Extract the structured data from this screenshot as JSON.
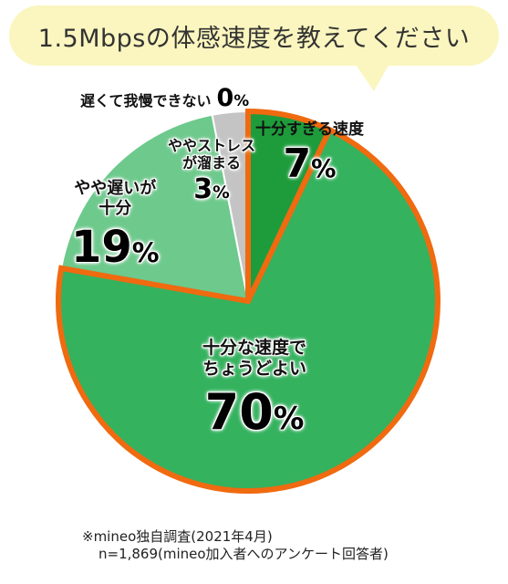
{
  "title": "1.5Mbpsの体感速度を教えてください",
  "chart_data": {
    "type": "pie",
    "slices": [
      {
        "label": "十分すぎる速度",
        "value": 7,
        "color": "#1e9c3c",
        "highlight": true
      },
      {
        "label": "十分な速度でちょうどよい",
        "value": 70,
        "color": "#34b25e",
        "highlight": true
      },
      {
        "label": "やや遅いが十分",
        "value": 19,
        "color": "#6dc98c",
        "highlight": false
      },
      {
        "label": "ややストレスが溜まる",
        "value": 3,
        "color": "#c4c4c4",
        "highlight": false
      },
      {
        "label": "遅くて我慢できない",
        "value": 0,
        "color": "#888888",
        "highlight": false
      }
    ],
    "highlight_color": "#f06a10",
    "labels": {
      "s0": {
        "line1": "十分すぎる速度",
        "num": "7",
        "sign": "%"
      },
      "s1": {
        "line1": "十分な速度で",
        "line2": "ちょうどよい",
        "num": "70",
        "sign": "%"
      },
      "s2": {
        "line1": "やや遅いが",
        "line2": "十分",
        "num": "19",
        "sign": "%"
      },
      "s3": {
        "line1": "ややストレス",
        "line2": "が溜まる",
        "num": "3",
        "sign": "%"
      },
      "s4": {
        "line1": "遅くて我慢できない",
        "num": "0",
        "sign": "%"
      }
    }
  },
  "note": {
    "line1": "※mineo独自調査(2021年4月)",
    "line2": "n=1,869(mineo加入者へのアンケート回答者)"
  }
}
